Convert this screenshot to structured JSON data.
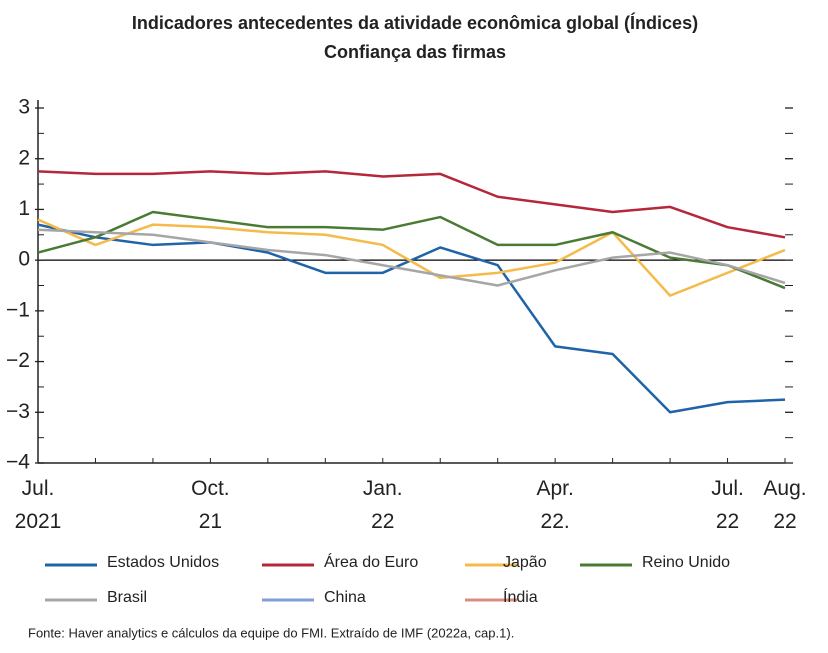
{
  "chart_data": {
    "type": "line",
    "title": "Indicadores antecedentes da atividade econômica global (Índices)",
    "subtitle": "Confiança das firmas",
    "categories": [
      "Jul. 2021",
      null,
      null,
      "Oct. 21",
      null,
      null,
      "Jan. 22",
      null,
      null,
      "Apr. 22.",
      null,
      null,
      "Jul. 22",
      "Aug. 22"
    ],
    "series": [
      {
        "name": "Estados Unidos",
        "color": "#1f63a8",
        "values": [
          0.7,
          0.45,
          0.3,
          0.35,
          0.15,
          -0.25,
          -0.25,
          0.25,
          -0.1,
          -1.7,
          -1.85,
          -3.0,
          -2.8,
          -2.75
        ]
      },
      {
        "name": "Área do Euro",
        "color": "#b5273a",
        "values": [
          1.75,
          1.7,
          1.7,
          1.75,
          1.7,
          1.75,
          1.65,
          1.7,
          1.25,
          1.1,
          0.95,
          1.05,
          0.65,
          0.45
        ]
      },
      {
        "name": "Japão",
        "color": "#f5bb4a",
        "values": [
          0.8,
          0.3,
          0.7,
          0.65,
          0.55,
          0.5,
          0.3,
          -0.35,
          -0.25,
          -0.05,
          0.55,
          -0.7,
          -0.25,
          0.2
        ]
      },
      {
        "name": "Reino Unido",
        "color": "#4a7b34",
        "values": [
          0.15,
          0.45,
          0.95,
          0.8,
          0.65,
          0.65,
          0.6,
          0.85,
          0.3,
          0.3,
          0.55,
          0.05,
          -0.1,
          -0.55
        ]
      },
      {
        "name": "Brasil",
        "color": "#a6a6a6",
        "values": [
          0.6,
          0.55,
          0.5,
          0.35,
          0.2,
          0.1,
          -0.1,
          -0.3,
          -0.5,
          -0.2,
          0.05,
          0.15,
          -0.1,
          -0.45
        ]
      },
      {
        "name": "China",
        "color": "#7f9fd6",
        "values": [
          null,
          null,
          null,
          null,
          null,
          null,
          null,
          null,
          null,
          null,
          null,
          null,
          null,
          null
        ]
      },
      {
        "name": "Índia",
        "color": "#d98e80",
        "values": [
          null,
          null,
          null,
          null,
          null,
          null,
          null,
          null,
          null,
          null,
          null,
          null,
          null,
          null
        ]
      }
    ],
    "ylim": [
      -4,
      3
    ],
    "yticks": [
      {
        "value": -4,
        "label": "−4"
      },
      {
        "value": -3,
        "label": "−3"
      },
      {
        "value": -2,
        "label": "−2"
      },
      {
        "value": -1,
        "label": "−1"
      },
      0,
      1,
      2,
      3
    ],
    "source": "Fonte: Haver analytics e cálculos da equipe do FMI.  Extraído de IMF (2022a, cap.1)."
  }
}
